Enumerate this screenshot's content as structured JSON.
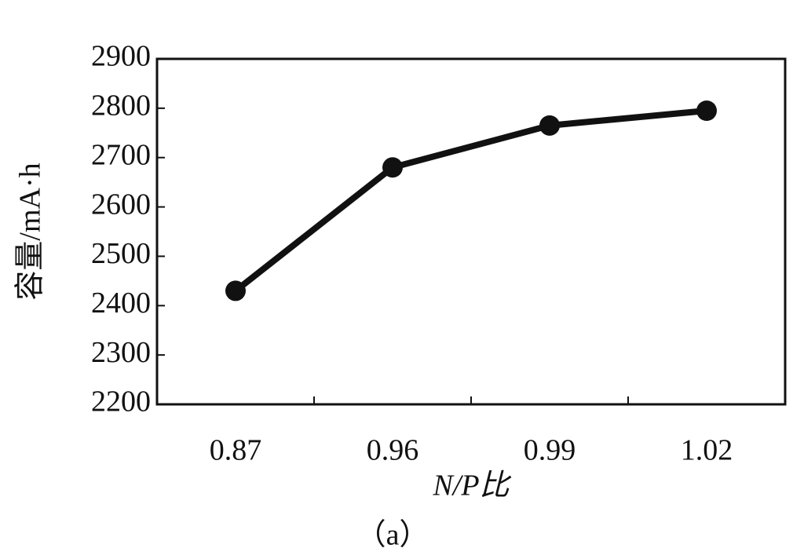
{
  "chart_data": {
    "type": "line",
    "x_label": "N/P比",
    "y_label": "容量/mA·h",
    "caption": "（a）",
    "categories": [
      "0.87",
      "0.96",
      "0.99",
      "1.02"
    ],
    "series": [
      {
        "name": null,
        "color": "#111111",
        "values": [
          2430,
          2680,
          2765,
          2795
        ]
      }
    ],
    "ylim": [
      2200,
      2900
    ],
    "yticks": [
      2200,
      2300,
      2400,
      2500,
      2600,
      2700,
      2800,
      2900
    ],
    "grid": false
  }
}
